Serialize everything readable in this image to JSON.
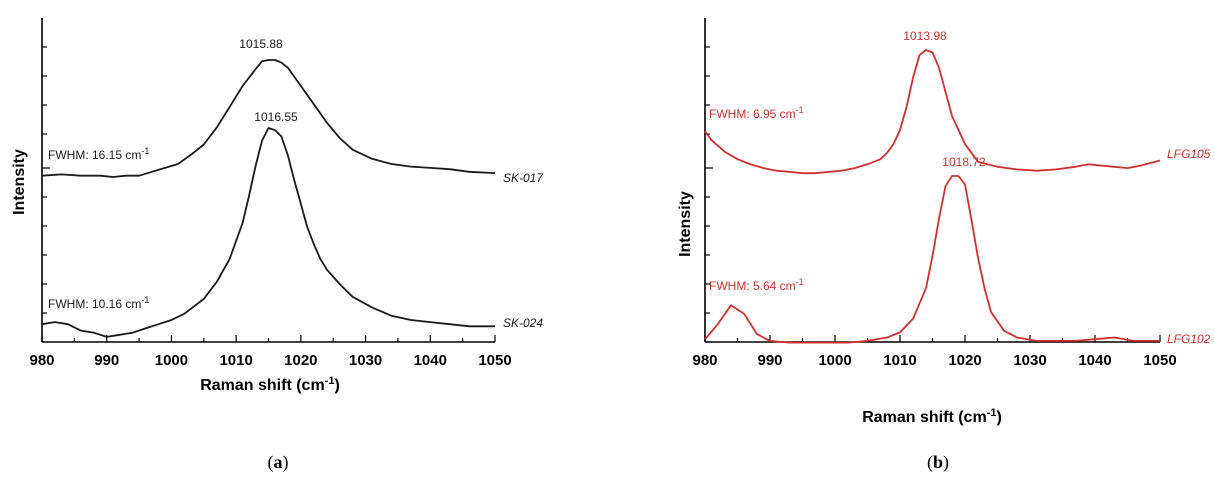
{
  "chart_data": [
    {
      "type": "line",
      "panel_label": "a",
      "panel_label_open": "(",
      "panel_label_close": ")",
      "xlabel": "Raman shift (cm",
      "xlabel_sup": "-1",
      "xlabel_close": ")",
      "ylabel": "Intensity",
      "xlim": [
        980,
        1050
      ],
      "xticks": [
        980,
        990,
        1000,
        1010,
        1020,
        1030,
        1040,
        1050
      ],
      "color": "#1a1a1a",
      "series": [
        {
          "name": "SK-017",
          "peak_label": "1015.88",
          "fwhm_label": "FWHM: 16.15 cm",
          "fwhm_sup": "-1",
          "x": [
            980,
            983,
            986,
            989,
            991,
            993,
            995,
            997,
            999,
            1001,
            1003,
            1005,
            1007,
            1009,
            1011,
            1013,
            1014,
            1015,
            1016,
            1017,
            1018,
            1019,
            1020,
            1022,
            1024,
            1026,
            1028,
            1031,
            1034,
            1037,
            1040,
            1043,
            1046,
            1050
          ],
          "y": [
            0.11,
            0.12,
            0.11,
            0.11,
            0.1,
            0.11,
            0.11,
            0.14,
            0.17,
            0.2,
            0.27,
            0.35,
            0.48,
            0.64,
            0.8,
            0.93,
            0.99,
            1.0,
            1.0,
            0.98,
            0.94,
            0.87,
            0.8,
            0.66,
            0.52,
            0.4,
            0.31,
            0.24,
            0.2,
            0.18,
            0.17,
            0.16,
            0.14,
            0.13
          ]
        },
        {
          "name": "SK-024",
          "peak_label": "1016.55",
          "fwhm_label": "FWHM: 10.16 cm",
          "fwhm_sup": "-1",
          "x": [
            980,
            982,
            984,
            986,
            988,
            990,
            992,
            994,
            996,
            998,
            1000,
            1002,
            1005,
            1007,
            1009,
            1011,
            1012,
            1013,
            1014,
            1015,
            1016,
            1017,
            1018,
            1019,
            1020,
            1021,
            1022,
            1023,
            1024,
            1026,
            1028,
            1031,
            1034,
            1037,
            1040,
            1043,
            1046,
            1050
          ],
          "y": [
            0.07,
            0.08,
            0.07,
            0.04,
            0.03,
            0.01,
            0.02,
            0.03,
            0.05,
            0.07,
            0.09,
            0.12,
            0.19,
            0.27,
            0.38,
            0.55,
            0.68,
            0.82,
            0.94,
            1.0,
            0.99,
            0.96,
            0.87,
            0.75,
            0.64,
            0.53,
            0.45,
            0.38,
            0.33,
            0.26,
            0.2,
            0.15,
            0.11,
            0.09,
            0.08,
            0.07,
            0.06,
            0.06
          ]
        }
      ]
    },
    {
      "type": "line",
      "panel_label": "b",
      "panel_label_open": "(",
      "panel_label_close": ")",
      "xlabel": "Raman shift (cm",
      "xlabel_sup": "-1",
      "xlabel_close": ")",
      "ylabel": "Intensity",
      "xlim": [
        980,
        1050
      ],
      "xticks": [
        980,
        990,
        1000,
        1010,
        1020,
        1030,
        1040,
        1050
      ],
      "color": "#d0302b",
      "series": [
        {
          "name": "LFG105",
          "peak_label": "1013.98",
          "fwhm_label": "FWHM: 6.95 cm",
          "fwhm_sup": "-1",
          "x": [
            980,
            981,
            983,
            985,
            987,
            989,
            991,
            993,
            995,
            997,
            999,
            1001,
            1003,
            1005,
            1007,
            1008,
            1009,
            1010,
            1011,
            1012,
            1013,
            1014,
            1015,
            1016,
            1017,
            1018,
            1020,
            1022,
            1025,
            1028,
            1031,
            1034,
            1037,
            1039,
            1041,
            1043,
            1045,
            1047,
            1050
          ],
          "y": [
            0.36,
            0.29,
            0.2,
            0.14,
            0.1,
            0.07,
            0.05,
            0.04,
            0.03,
            0.03,
            0.04,
            0.05,
            0.07,
            0.1,
            0.14,
            0.19,
            0.26,
            0.37,
            0.55,
            0.78,
            0.96,
            1.0,
            0.98,
            0.86,
            0.67,
            0.48,
            0.26,
            0.12,
            0.08,
            0.06,
            0.05,
            0.06,
            0.08,
            0.1,
            0.09,
            0.08,
            0.07,
            0.09,
            0.13
          ]
        },
        {
          "name": "LFG102",
          "peak_label": "1018.72",
          "fwhm_label": "FWHM: 5.64 cm",
          "fwhm_sup": "-1",
          "x": [
            980,
            982,
            984,
            986,
            988,
            990,
            993,
            996,
            999,
            1002,
            1005,
            1008,
            1010,
            1012,
            1014,
            1015,
            1016,
            1017,
            1018,
            1019,
            1020,
            1021,
            1022,
            1023,
            1024,
            1026,
            1028,
            1031,
            1034,
            1037,
            1040,
            1043,
            1046,
            1050
          ],
          "y": [
            0.04,
            0.13,
            0.24,
            0.19,
            0.07,
            0.03,
            0.02,
            0.02,
            0.02,
            0.02,
            0.03,
            0.05,
            0.08,
            0.16,
            0.34,
            0.53,
            0.75,
            0.94,
            1.0,
            1.0,
            0.95,
            0.74,
            0.52,
            0.34,
            0.2,
            0.09,
            0.05,
            0.03,
            0.03,
            0.03,
            0.04,
            0.05,
            0.03,
            0.03
          ]
        }
      ]
    }
  ]
}
